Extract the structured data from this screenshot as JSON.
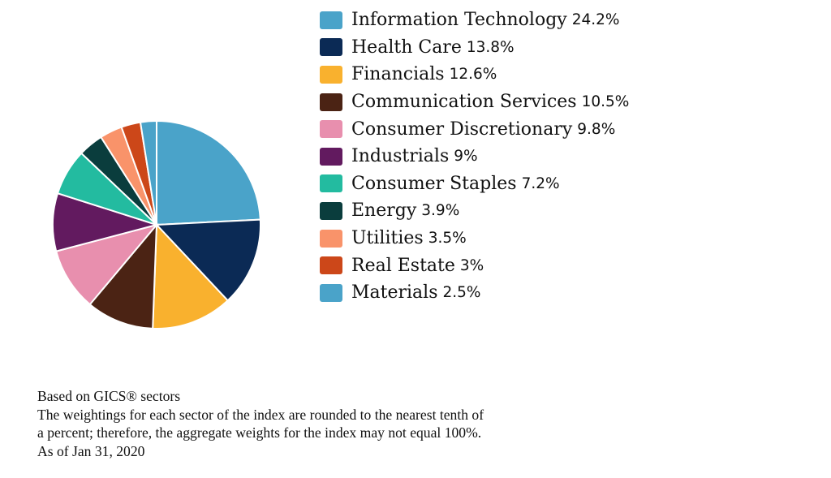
{
  "chart_data": {
    "type": "pie",
    "categories": [
      "Information Technology",
      "Health Care",
      "Financials",
      "Communication Services",
      "Consumer Discretionary",
      "Industrials",
      "Consumer Staples",
      "Energy",
      "Utilities",
      "Real Estate",
      "Materials"
    ],
    "values": [
      24.2,
      13.8,
      12.6,
      10.5,
      9.8,
      9,
      7.2,
      3.9,
      3.5,
      3,
      2.5
    ],
    "value_labels": [
      "24.2%",
      "13.8%",
      "12.6%",
      "10.5%",
      "9.8%",
      "9%",
      "7.2%",
      "3.9%",
      "3.5%",
      "3%",
      "2.5%"
    ],
    "colors": [
      "#4aa3c9",
      "#0b2a55",
      "#f9b12e",
      "#4b2314",
      "#e88fae",
      "#621a5f",
      "#23bba0",
      "#0a3d3d",
      "#f9936a",
      "#cc4719",
      "#4aa3c9"
    ],
    "start": "top",
    "direction": "clockwise",
    "legend_position": "right"
  },
  "footer": {
    "lines": [
      "Based on GICS® sectors",
      "The weightings for each sector of the index are rounded to the nearest tenth of",
      "a percent; therefore, the aggregate weights for the index may not equal 100%.",
      "As of Jan 31, 2020"
    ]
  }
}
